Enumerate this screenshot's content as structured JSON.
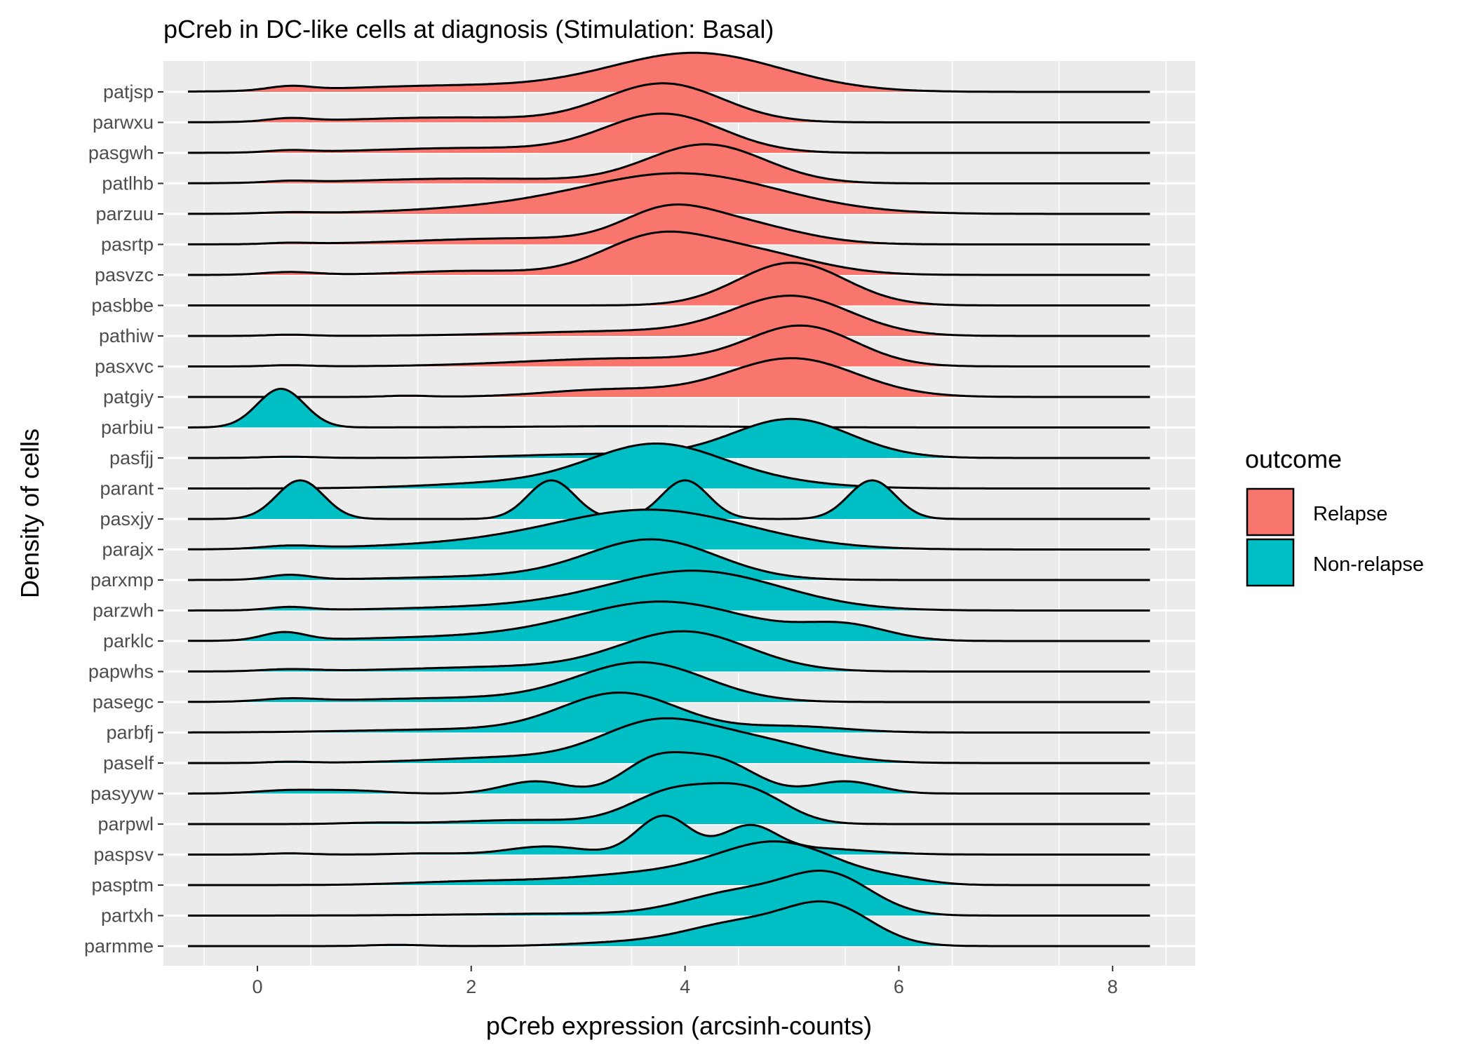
{
  "chart_data": {
    "type": "ridgeline",
    "title": "pCreb in DC-like cells at diagnosis (Stimulation: Basal)",
    "xlabel": "pCreb expression (arcsinh-counts)",
    "ylabel": "Density of cells",
    "xlim": [
      -0.85,
      8.75
    ],
    "xticks": [
      0,
      2,
      4,
      6,
      8
    ],
    "grid": true,
    "legend": {
      "title": "outcome",
      "placement": "right",
      "entries": [
        {
          "label": "Relapse",
          "color": "#F8766D"
        },
        {
          "label": "Non-relapse",
          "color": "#00BFC4"
        }
      ]
    },
    "series": [
      {
        "name": "patjsp",
        "outcome": "Relapse",
        "components": [
          [
            0.3,
            0.2,
            0.1
          ],
          [
            1.8,
            1.0,
            0.15
          ],
          [
            4.1,
            0.8,
            0.95
          ]
        ]
      },
      {
        "name": "parwxu",
        "outcome": "Relapse",
        "components": [
          [
            0.3,
            0.2,
            0.08
          ],
          [
            1.8,
            0.9,
            0.12
          ],
          [
            3.8,
            0.55,
            0.95
          ]
        ]
      },
      {
        "name": "pasgwh",
        "outcome": "Relapse",
        "components": [
          [
            0.3,
            0.2,
            0.05
          ],
          [
            2.0,
            0.9,
            0.12
          ],
          [
            3.8,
            0.55,
            0.95
          ]
        ]
      },
      {
        "name": "patlhb",
        "outcome": "Relapse",
        "components": [
          [
            0.3,
            0.2,
            0.04
          ],
          [
            2.0,
            1.0,
            0.12
          ],
          [
            4.2,
            0.55,
            0.95
          ]
        ]
      },
      {
        "name": "parzuu",
        "outcome": "Relapse",
        "components": [
          [
            0.3,
            0.25,
            0.03
          ],
          [
            2.5,
            1.0,
            0.15
          ],
          [
            4.0,
            0.9,
            0.95
          ]
        ]
      },
      {
        "name": "pasrtp",
        "outcome": "Relapse",
        "components": [
          [
            0.3,
            0.2,
            0.03
          ],
          [
            2.5,
            1.0,
            0.15
          ],
          [
            3.8,
            0.4,
            0.55
          ],
          [
            4.4,
            0.6,
            0.55
          ]
        ]
      },
      {
        "name": "pasvzc",
        "outcome": "Relapse",
        "components": [
          [
            0.3,
            0.25,
            0.07
          ],
          [
            2.0,
            0.6,
            0.1
          ],
          [
            3.7,
            0.5,
            0.85
          ],
          [
            4.6,
            0.6,
            0.55
          ]
        ]
      },
      {
        "name": "pasbbe",
        "outcome": "Relapse",
        "components": [
          [
            5.0,
            0.5,
            1.05
          ]
        ]
      },
      {
        "name": "pathiw",
        "outcome": "Relapse",
        "components": [
          [
            0.3,
            0.2,
            0.03
          ],
          [
            3.5,
            1.0,
            0.12
          ],
          [
            5.0,
            0.55,
            0.95
          ]
        ]
      },
      {
        "name": "pasxvc",
        "outcome": "Relapse",
        "components": [
          [
            0.3,
            0.2,
            0.03
          ],
          [
            3.5,
            1.0,
            0.2
          ],
          [
            5.1,
            0.5,
            0.95
          ]
        ]
      },
      {
        "name": "patgiy",
        "outcome": "Relapse",
        "components": [
          [
            1.4,
            0.2,
            0.03
          ],
          [
            3.3,
            0.6,
            0.18
          ],
          [
            5.0,
            0.6,
            0.95
          ]
        ]
      },
      {
        "name": "parbiu",
        "outcome": "Non-relapse",
        "components": [
          [
            0.22,
            0.22,
            0.95
          ],
          [
            3.5,
            1.0,
            0.03
          ]
        ]
      },
      {
        "name": "pasfjj",
        "outcome": "Non-relapse",
        "components": [
          [
            0.3,
            0.25,
            0.03
          ],
          [
            3.3,
            0.8,
            0.1
          ],
          [
            5.0,
            0.55,
            0.95
          ]
        ]
      },
      {
        "name": "parant",
        "outcome": "Non-relapse",
        "components": [
          [
            2.5,
            0.8,
            0.15
          ],
          [
            3.7,
            0.6,
            0.95
          ],
          [
            4.5,
            0.7,
            0.2
          ]
        ]
      },
      {
        "name": "pasxjy",
        "outcome": "Non-relapse",
        "components": [
          [
            0.4,
            0.22,
            0.95
          ],
          [
            2.75,
            0.22,
            0.95
          ],
          [
            4.0,
            0.22,
            0.95
          ],
          [
            5.75,
            0.22,
            0.95
          ]
        ]
      },
      {
        "name": "parajx",
        "outcome": "Non-relapse",
        "components": [
          [
            0.3,
            0.25,
            0.07
          ],
          [
            2.0,
            1.0,
            0.12
          ],
          [
            3.7,
            0.9,
            0.95
          ]
        ]
      },
      {
        "name": "parxmp",
        "outcome": "Non-relapse",
        "components": [
          [
            0.3,
            0.2,
            0.12
          ],
          [
            2.5,
            1.0,
            0.1
          ],
          [
            3.7,
            0.6,
            0.95
          ]
        ]
      },
      {
        "name": "parzwh",
        "outcome": "Non-relapse",
        "components": [
          [
            0.3,
            0.2,
            0.08
          ],
          [
            2.5,
            1.0,
            0.1
          ],
          [
            4.1,
            0.8,
            0.95
          ]
        ]
      },
      {
        "name": "parklc",
        "outcome": "Non-relapse",
        "components": [
          [
            0.25,
            0.2,
            0.2
          ],
          [
            2.0,
            1.0,
            0.1
          ],
          [
            3.8,
            0.8,
            0.95
          ],
          [
            5.5,
            0.4,
            0.35
          ]
        ]
      },
      {
        "name": "papwhs",
        "outcome": "Non-relapse",
        "components": [
          [
            0.3,
            0.25,
            0.05
          ],
          [
            2.5,
            1.0,
            0.12
          ],
          [
            4.0,
            0.6,
            0.95
          ]
        ]
      },
      {
        "name": "pasegc",
        "outcome": "Non-relapse",
        "components": [
          [
            0.3,
            0.25,
            0.07
          ],
          [
            2.0,
            1.0,
            0.1
          ],
          [
            3.6,
            0.6,
            0.95
          ]
        ]
      },
      {
        "name": "parbfj",
        "outcome": "Non-relapse",
        "components": [
          [
            2.0,
            1.0,
            0.08
          ],
          [
            3.4,
            0.55,
            0.95
          ],
          [
            5.0,
            0.5,
            0.15
          ]
        ]
      },
      {
        "name": "paself",
        "outcome": "Non-relapse",
        "components": [
          [
            0.3,
            0.2,
            0.03
          ],
          [
            2.5,
            0.8,
            0.15
          ],
          [
            3.7,
            0.5,
            0.85
          ],
          [
            4.6,
            0.6,
            0.55
          ]
        ]
      },
      {
        "name": "pasyyw",
        "outcome": "Non-relapse",
        "components": [
          [
            0.3,
            0.3,
            0.08
          ],
          [
            0.9,
            0.3,
            0.07
          ],
          [
            2.6,
            0.3,
            0.3
          ],
          [
            3.7,
            0.3,
            0.75
          ],
          [
            4.3,
            0.35,
            0.8
          ],
          [
            5.5,
            0.3,
            0.3
          ]
        ]
      },
      {
        "name": "parpwl",
        "outcome": "Non-relapse",
        "components": [
          [
            1.1,
            0.3,
            0.03
          ],
          [
            2.5,
            0.6,
            0.1
          ],
          [
            3.9,
            0.4,
            0.8
          ],
          [
            4.6,
            0.35,
            0.75
          ]
        ]
      },
      {
        "name": "paspsv",
        "outcome": "Non-relapse",
        "components": [
          [
            0.3,
            0.2,
            0.03
          ],
          [
            1.6,
            0.3,
            0.03
          ],
          [
            2.7,
            0.35,
            0.2
          ],
          [
            3.8,
            0.25,
            0.95
          ],
          [
            4.6,
            0.25,
            0.65
          ],
          [
            5.2,
            0.5,
            0.15
          ]
        ]
      },
      {
        "name": "pasptm",
        "outcome": "Non-relapse",
        "components": [
          [
            2.0,
            0.6,
            0.08
          ],
          [
            3.8,
            0.8,
            0.3
          ],
          [
            4.9,
            0.55,
            0.95
          ],
          [
            6.0,
            0.3,
            0.1
          ]
        ]
      },
      {
        "name": "partxh",
        "outcome": "Non-relapse",
        "components": [
          [
            3.0,
            1.0,
            0.05
          ],
          [
            4.5,
            0.5,
            0.55
          ],
          [
            5.35,
            0.4,
            0.95
          ]
        ]
      },
      {
        "name": "parmme",
        "outcome": "Non-relapse",
        "components": [
          [
            1.3,
            0.25,
            0.03
          ],
          [
            3.4,
            0.5,
            0.08
          ],
          [
            4.5,
            0.5,
            0.55
          ],
          [
            5.35,
            0.4,
            0.95
          ]
        ]
      }
    ]
  }
}
